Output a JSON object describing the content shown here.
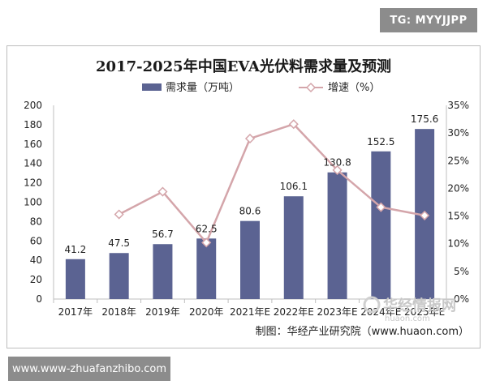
{
  "tag": "TG: MYYJJPP",
  "footer_url": "www.www-zhuafanzhibo.com",
  "source": "制图：华经产业研究院（www.huaon.com）",
  "watermark": {
    "name": "华经情报网",
    "site": "huaon.com"
  },
  "chart_data": {
    "type": "bar",
    "title": "2017-2025年中国EVA光伏料需求量及预测",
    "categories": [
      "2017年",
      "2018年",
      "2019年",
      "2020年",
      "2021年E",
      "2022年E",
      "2023年E",
      "2024年E",
      "2025年E"
    ],
    "series": [
      {
        "name": "需求量（万吨）",
        "type": "bar",
        "axis": "left",
        "values": [
          41.2,
          47.5,
          56.7,
          62.5,
          80.6,
          106.1,
          130.8,
          152.5,
          175.6
        ],
        "labels": [
          "41.2",
          "47.5",
          "56.7",
          "62.5",
          "80.6",
          "106.1",
          "130.8",
          "152.5",
          "175.6"
        ]
      },
      {
        "name": "增速（%）",
        "type": "line",
        "axis": "right",
        "values": [
          null,
          15.3,
          19.4,
          10.2,
          29.0,
          31.6,
          23.3,
          16.6,
          15.1
        ]
      }
    ],
    "y_left": {
      "min": 0,
      "max": 200,
      "step": 20,
      "ticks": [
        "0",
        "20",
        "40",
        "60",
        "80",
        "100",
        "120",
        "140",
        "160",
        "180",
        "200"
      ]
    },
    "y_right": {
      "min": 0,
      "max": 35,
      "step": 5,
      "ticks": [
        "0%",
        "5%",
        "10%",
        "15%",
        "20%",
        "25%",
        "30%",
        "35%"
      ]
    },
    "legend": {
      "position": "top"
    },
    "colors": {
      "bar": "#5b6392",
      "line": "#d4a5aa",
      "marker_edge": "#d4a5aa",
      "marker_fill": "#ffffff"
    },
    "grid": false
  }
}
